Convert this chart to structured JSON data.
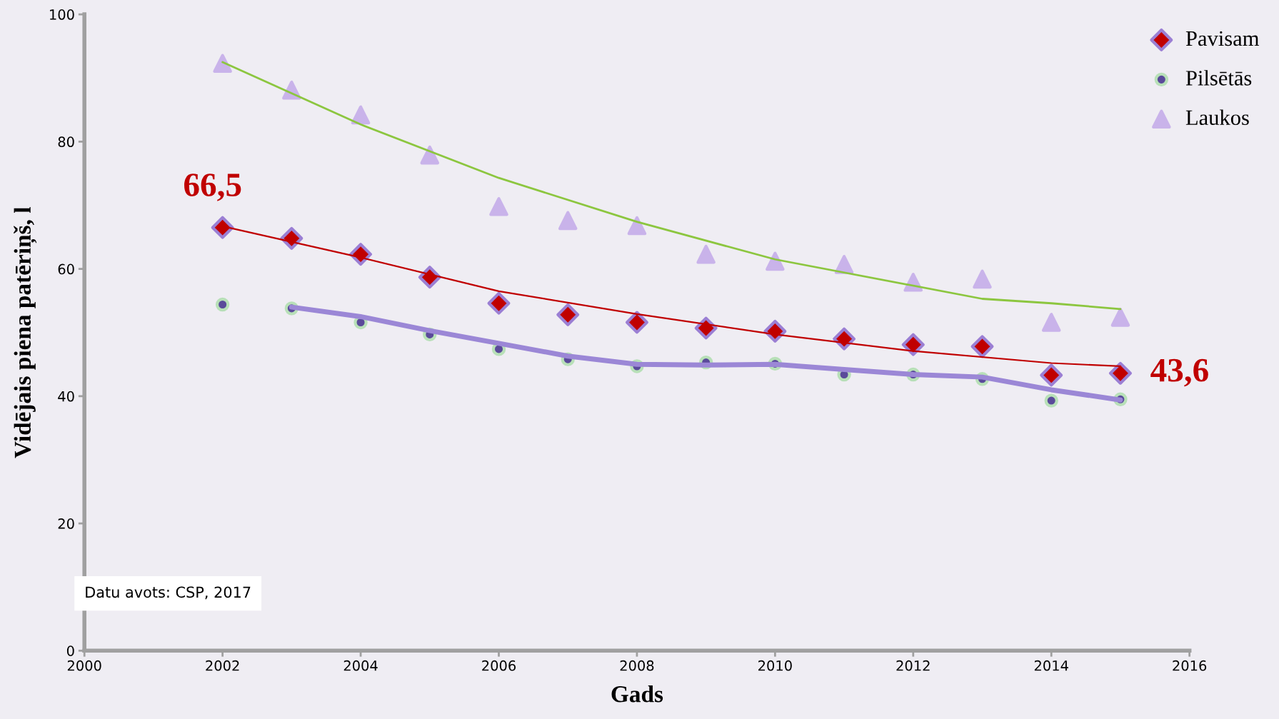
{
  "chart_data": {
    "type": "scatter",
    "xlabel": "Gads",
    "ylabel": "Vidējais piena patēriņš, l",
    "x": [
      2002,
      2003,
      2004,
      2005,
      2006,
      2007,
      2008,
      2009,
      2010,
      2011,
      2012,
      2013,
      2014,
      2015
    ],
    "xlim": [
      2000,
      2016
    ],
    "xticks": [
      2000,
      2002,
      2004,
      2006,
      2008,
      2010,
      2012,
      2014,
      2016
    ],
    "ylim": [
      0,
      100
    ],
    "yticks": [
      0,
      20,
      40,
      60,
      80,
      100
    ],
    "grid": false,
    "legend": "top right",
    "series": [
      {
        "name": "Pavisam",
        "color": "#c00000",
        "marker": "diamond",
        "values": [
          66.5,
          64.8,
          62.3,
          58.7,
          54.6,
          52.8,
          51.6,
          50.7,
          50.2,
          49.0,
          48.1,
          47.8,
          43.3,
          43.6
        ]
      },
      {
        "name": "Pilsētās",
        "color": "#5a4a9a",
        "marker": "circle",
        "values": [
          54.4,
          53.8,
          51.6,
          49.7,
          47.4,
          45.8,
          44.7,
          45.3,
          45.1,
          43.4,
          43.4,
          42.7,
          39.3,
          39.5
        ]
      },
      {
        "name": "Laukos",
        "color": "#c9b3ea",
        "marker": "triangle",
        "values": [
          92.3,
          88.1,
          84.2,
          77.9,
          69.8,
          67.6,
          66.8,
          62.3,
          61.2,
          60.7,
          57.9,
          58.4,
          51.6,
          52.4
        ]
      },
      {
        "type": "line",
        "color": "#8cc63f",
        "x": [
          2002,
          2004,
          2006,
          2008,
          2010,
          2013,
          2014,
          2015
        ],
        "values": [
          92.5,
          82.7,
          74.3,
          67.4,
          61.5,
          55.3,
          54.6,
          53.7
        ]
      },
      {
        "type": "line",
        "color": "#c00000",
        "x": [
          2002,
          2004,
          2006,
          2008,
          2010,
          2012,
          2014,
          2015
        ],
        "values": [
          66.7,
          61.8,
          56.5,
          52.9,
          49.7,
          47.1,
          45.2,
          44.7
        ]
      },
      {
        "type": "line",
        "color": "#9b87d6",
        "x": [
          2003,
          2004,
          2005,
          2006,
          2007,
          2008,
          2009,
          2010,
          2011,
          2012,
          2013,
          2014,
          2015
        ],
        "values": [
          54.0,
          52.5,
          50.3,
          48.3,
          46.3,
          45.0,
          44.9,
          45.0,
          44.2,
          43.4,
          43.0,
          41.0,
          39.4
        ]
      }
    ],
    "annotations": [
      {
        "text": "66,5",
        "x": 2002,
        "y": 66.5
      },
      {
        "text": "43,6",
        "x": 2015,
        "y": 43.6
      },
      "Datu avots: CSP, 2017"
    ]
  }
}
